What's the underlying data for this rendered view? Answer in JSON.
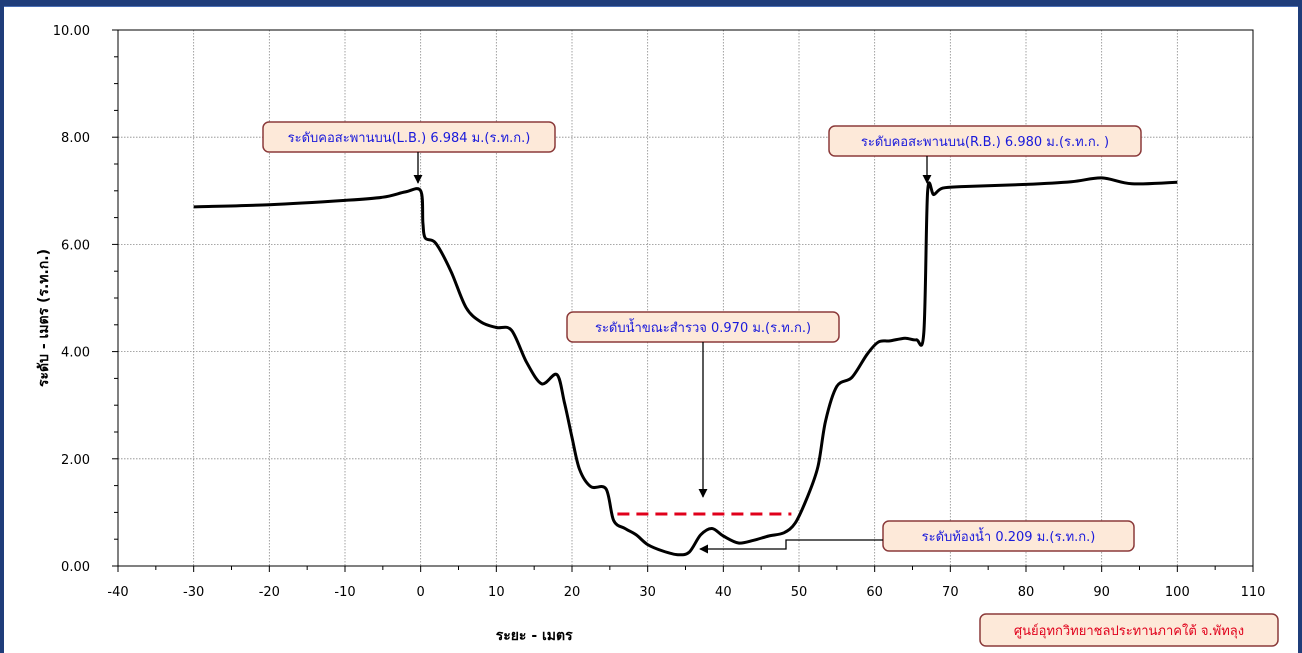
{
  "chart_data": {
    "type": "line",
    "xlabel": "ระยะ - เมตร",
    "ylabel": "ระดับ - เมตร (ร.ท.ก.)",
    "xlim": [
      -40,
      110
    ],
    "ylim": [
      0,
      10
    ],
    "x_ticks": [
      "-40",
      "-30",
      "-20",
      "-10",
      "0",
      "10",
      "20",
      "30",
      "40",
      "50",
      "60",
      "70",
      "80",
      "90",
      "100",
      "110"
    ],
    "y_ticks": [
      "0.00",
      "2.00",
      "4.00",
      "6.00",
      "8.00",
      "10.00"
    ],
    "grid": true,
    "series": [
      {
        "color": "#000000",
        "points": [
          [
            -30,
            6.7
          ],
          [
            -20,
            6.74
          ],
          [
            -10,
            6.82
          ],
          [
            -5,
            6.88
          ],
          [
            -2,
            6.98
          ],
          [
            0,
            7.0
          ],
          [
            0.3,
            6.4
          ],
          [
            0.6,
            6.12
          ],
          [
            2,
            6.02
          ],
          [
            4,
            5.5
          ],
          [
            6,
            4.82
          ],
          [
            8,
            4.55
          ],
          [
            10,
            4.45
          ],
          [
            12,
            4.4
          ],
          [
            14,
            3.8
          ],
          [
            16,
            3.4
          ],
          [
            18,
            3.57
          ],
          [
            19,
            3.05
          ],
          [
            20,
            2.4
          ],
          [
            21,
            1.8
          ],
          [
            22.5,
            1.48
          ],
          [
            24.5,
            1.44
          ],
          [
            25.5,
            0.85
          ],
          [
            27,
            0.7
          ],
          [
            28.5,
            0.58
          ],
          [
            30,
            0.4
          ],
          [
            32,
            0.28
          ],
          [
            34,
            0.21
          ],
          [
            35.5,
            0.26
          ],
          [
            37,
            0.58
          ],
          [
            38.5,
            0.7
          ],
          [
            40,
            0.56
          ],
          [
            42,
            0.43
          ],
          [
            44,
            0.48
          ],
          [
            46,
            0.56
          ],
          [
            48,
            0.62
          ],
          [
            49.5,
            0.8
          ],
          [
            51,
            1.25
          ],
          [
            52.5,
            1.85
          ],
          [
            53.5,
            2.7
          ],
          [
            55,
            3.35
          ],
          [
            57,
            3.52
          ],
          [
            59,
            3.95
          ],
          [
            60.5,
            4.18
          ],
          [
            62,
            4.2
          ],
          [
            64,
            4.25
          ],
          [
            65.5,
            4.22
          ],
          [
            66.5,
            4.35
          ],
          [
            67,
            6.98
          ],
          [
            67.8,
            6.93
          ],
          [
            69,
            7.05
          ],
          [
            72,
            7.08
          ],
          [
            80,
            7.12
          ],
          [
            86,
            7.17
          ],
          [
            90,
            7.24
          ],
          [
            94,
            7.13
          ],
          [
            100,
            7.16
          ]
        ]
      },
      {
        "name": "ระดับน้ำขณะสำรวจ",
        "color": "#e0001b",
        "dashed": true,
        "points": [
          [
            26,
            0.97
          ],
          [
            49,
            0.97
          ]
        ]
      }
    ],
    "annotations": [
      {
        "id": "lb",
        "text": "ระดับคอสะพานบน(L.B.) 6.984 ม.(ร.ท.ก.)",
        "point": [
          0,
          7.0
        ],
        "arrow": "down"
      },
      {
        "id": "rb",
        "text": "ระดับคอสะพานบน(R.B.) 6.980 ม.(ร.ท.ก. )",
        "point": [
          67.2,
          6.98
        ],
        "arrow": "down"
      },
      {
        "id": "wl",
        "text": "ระดับน้ำขณะสำรวจ 0.970 ม.(ร.ท.ก.)",
        "point": [
          38,
          1.2
        ],
        "arrow": "down"
      },
      {
        "id": "bed",
        "text": "ระดับท้องน้ำ 0.209 ม.(ร.ท.ก.)",
        "point": [
          37,
          0.28
        ],
        "arrow": "left"
      }
    ]
  },
  "source_label": "ศูนย์อุทกวิทยาชลประทานภาคใต้ จ.พัทลุง",
  "colors": {
    "frame": "#1f3d7a",
    "callout_fill": "#fde9d9",
    "callout_border": "#8b3a3a",
    "callout_text": "#1a1adb",
    "source_text": "#e0001b",
    "water_line": "#e0001b"
  }
}
